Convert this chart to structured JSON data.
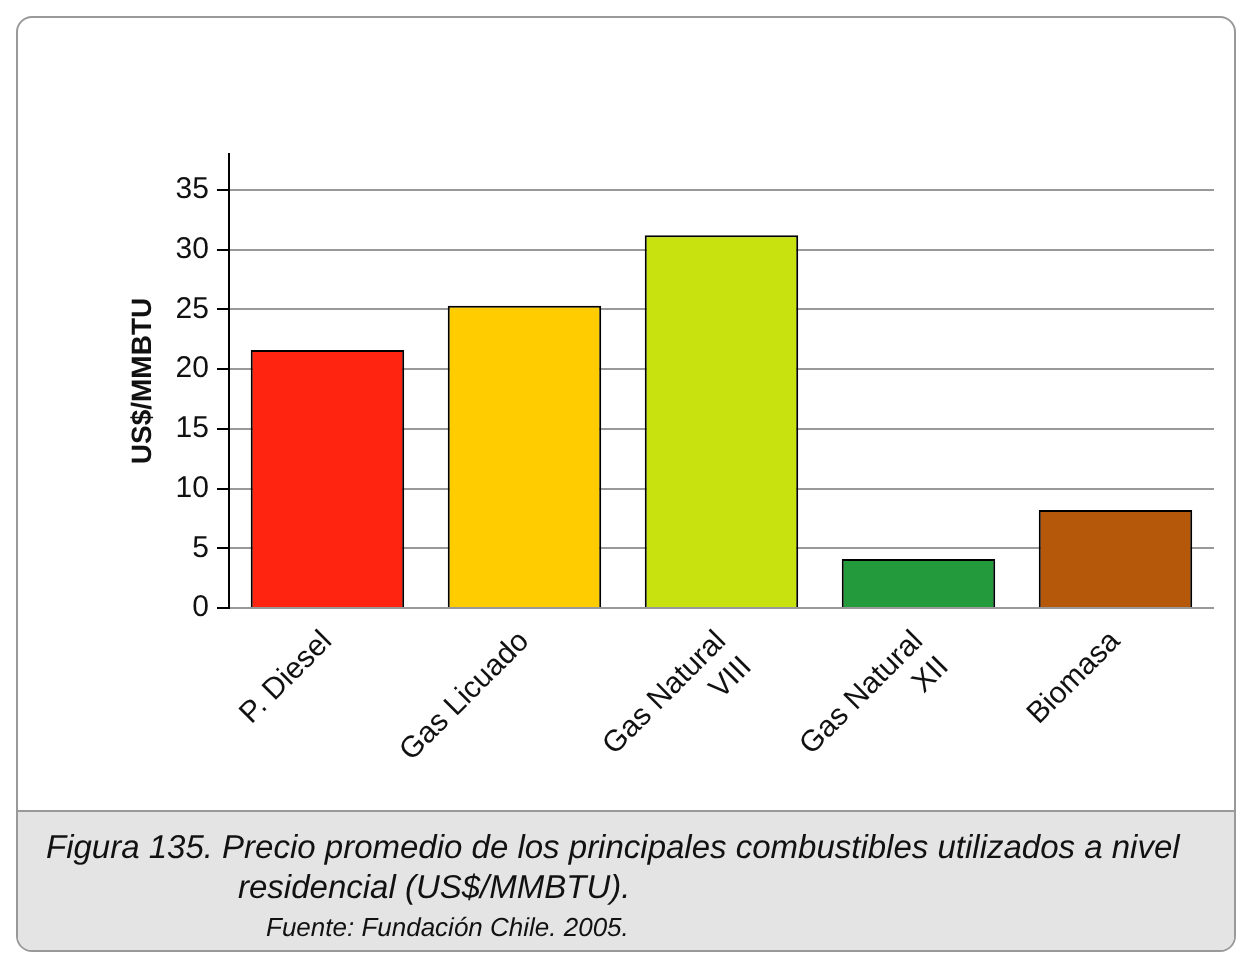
{
  "chart_data": {
    "type": "bar",
    "title": "Figura 135.  Precio promedio de los principales combustibles utilizados a nivel residencial (US$/MMBTU).",
    "annotations": [
      "Fuente: Fundación Chile. 2005."
    ],
    "ylabel": "US$/MMBTU",
    "categories": [
      "P. Diesel",
      "Gas Licuado",
      "Gas Natural\nVIII",
      "Gas Natural\nXII",
      "Biomasa"
    ],
    "values": [
      21.6,
      25.3,
      31.2,
      4.1,
      8.2
    ],
    "colors": [
      "#ff2410",
      "#ffcc00",
      "#c8e210",
      "#239b3c",
      "#b5580a"
    ],
    "ylim": [
      0,
      38
    ],
    "yticks": [
      0,
      5,
      10,
      15,
      20,
      25,
      30,
      35
    ],
    "grid": "y",
    "legend": false
  }
}
